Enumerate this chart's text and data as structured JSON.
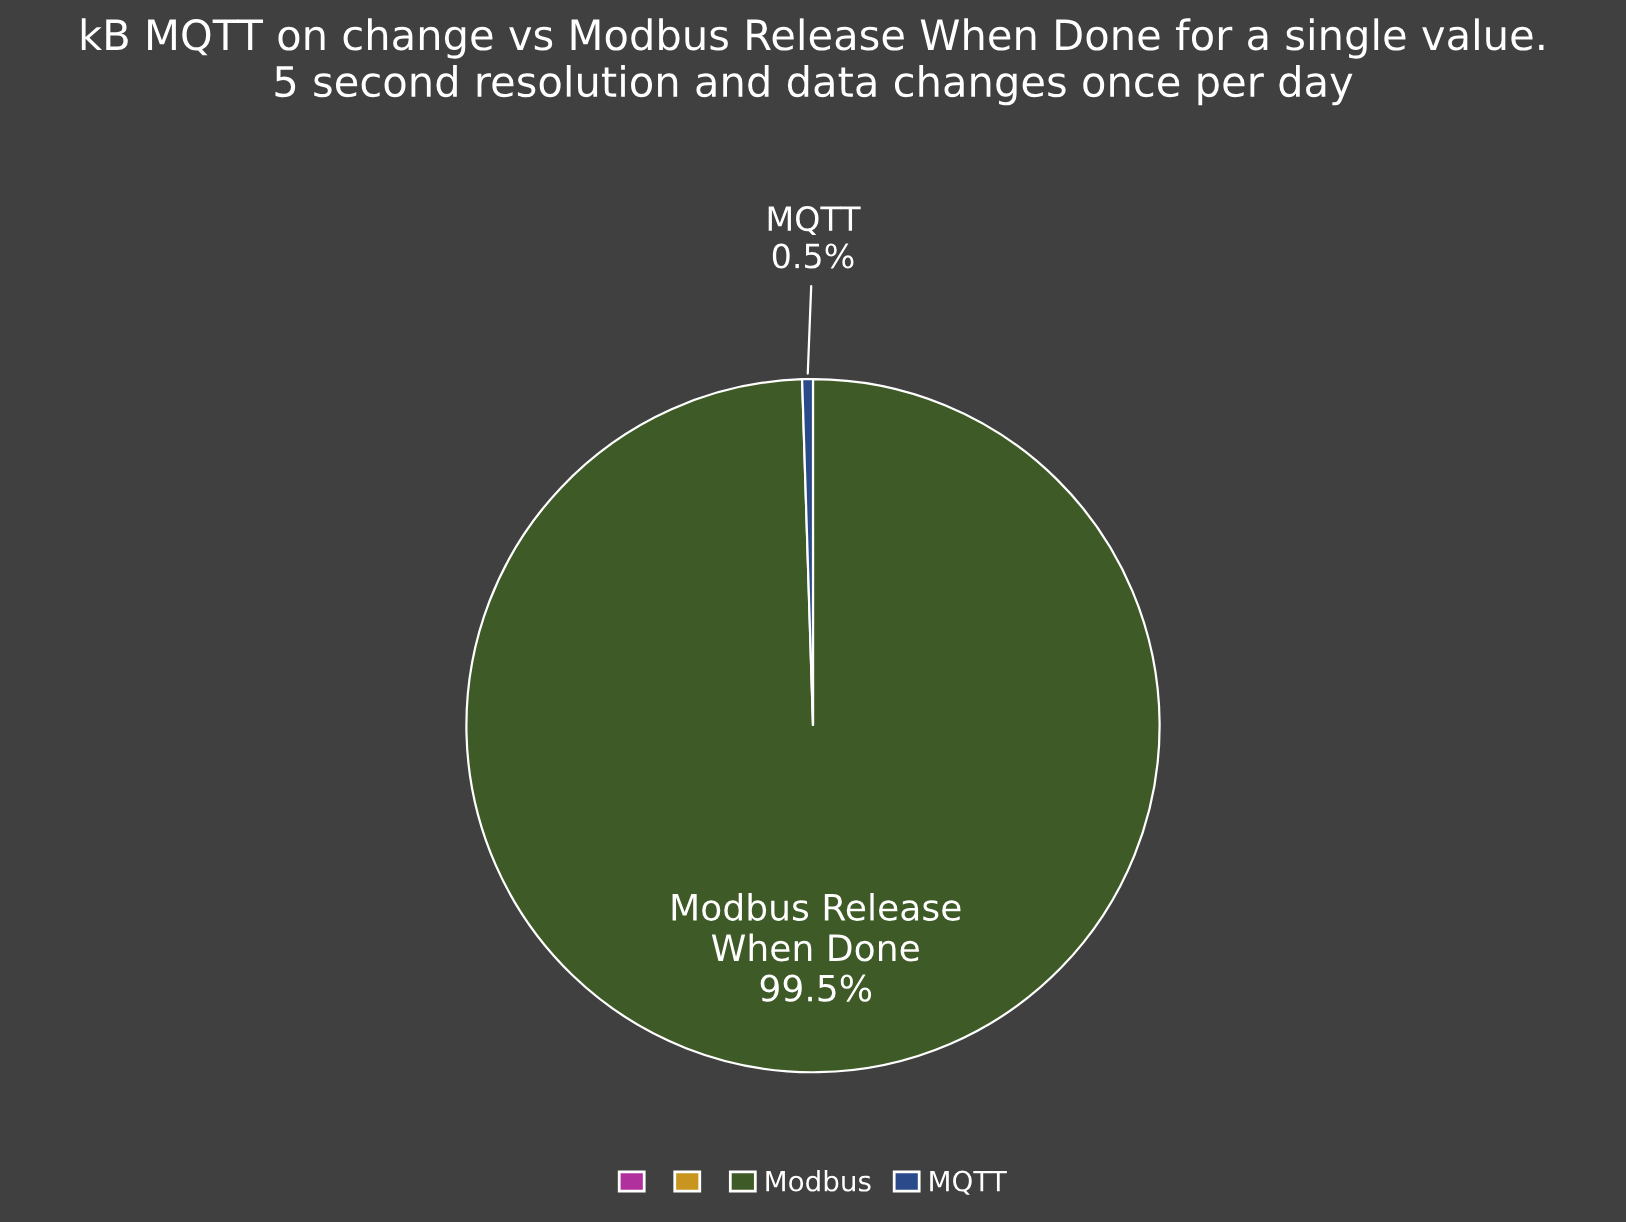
{
  "chart_data": {
    "type": "pie",
    "title": "kB MQTT on change vs Modbus Release When Done for a single value.\n5 second resolution and data changes once per day",
    "categories": [
      null,
      null,
      "Modbus",
      "MQTT"
    ],
    "values": [
      0,
      0,
      99.5,
      0.5
    ],
    "colors": [
      "#b0309e",
      "#c8961e",
      "#3e5a26",
      "#2a4a8a"
    ],
    "value_labels": [
      null,
      null,
      "99.5%",
      "0.5%"
    ],
    "annotations": [
      "Modbus Release\nWhen Done",
      "MQTT"
    ],
    "legend": "bottom"
  }
}
